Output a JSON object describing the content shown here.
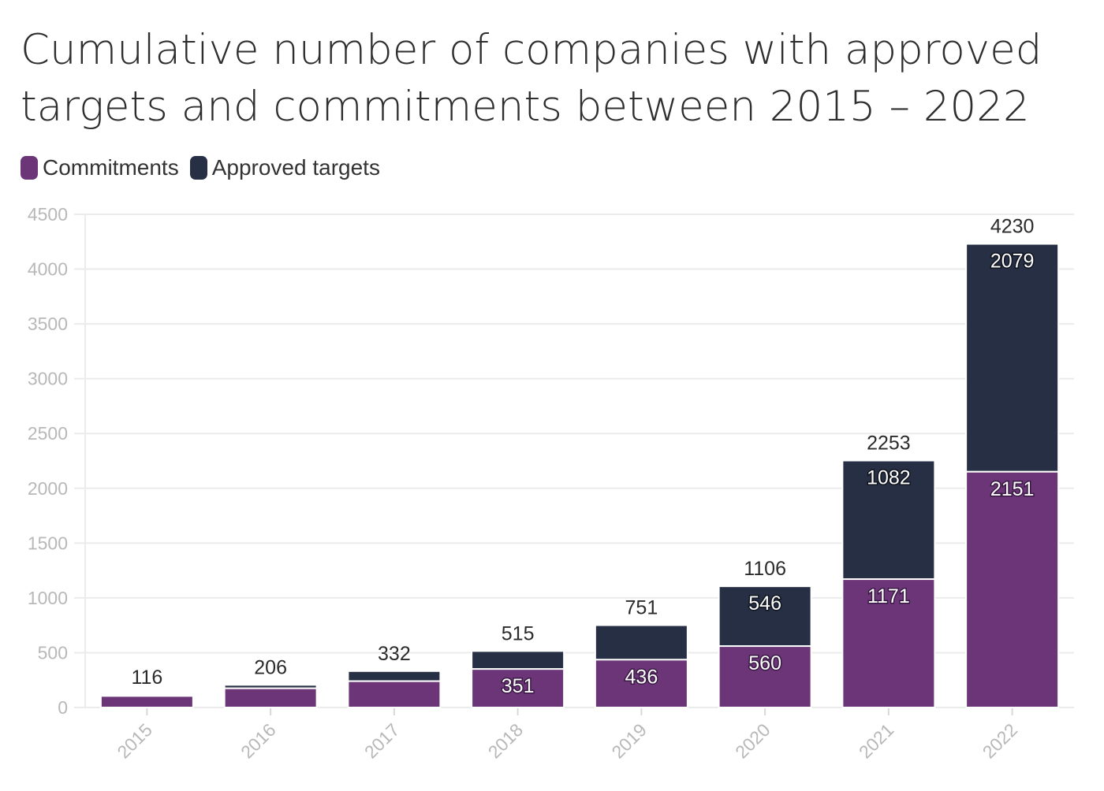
{
  "chart_data": {
    "type": "bar",
    "stacked": true,
    "title": "Cumulative number of companies with approved targets and commitments between 2015 – 2022",
    "xlabel": "",
    "ylabel": "",
    "ylim": [
      0,
      4500
    ],
    "yticks": [
      0,
      500,
      1000,
      1500,
      2000,
      2500,
      3000,
      3500,
      4000,
      4500
    ],
    "grid": true,
    "legend_position": "top-left",
    "categories": [
      "2015",
      "2016",
      "2017",
      "2018",
      "2019",
      "2020",
      "2021",
      "2022"
    ],
    "series": [
      {
        "name": "Commitments",
        "color": "#6b3577",
        "values": [
          105,
          175,
          240,
          351,
          436,
          560,
          1171,
          2151
        ],
        "labels": [
          "",
          "",
          "",
          "351",
          "436",
          "560",
          "1171",
          "2151"
        ]
      },
      {
        "name": "Approved targets",
        "color": "#262f44",
        "values": [
          11,
          31,
          92,
          164,
          315,
          546,
          1082,
          2079
        ],
        "labels": [
          "",
          "",
          "",
          "",
          "",
          "546",
          "1082",
          "2079"
        ]
      }
    ],
    "totals": [
      "116",
      "206",
      "332",
      "515",
      "751",
      "1106",
      "2253",
      "4230"
    ]
  }
}
